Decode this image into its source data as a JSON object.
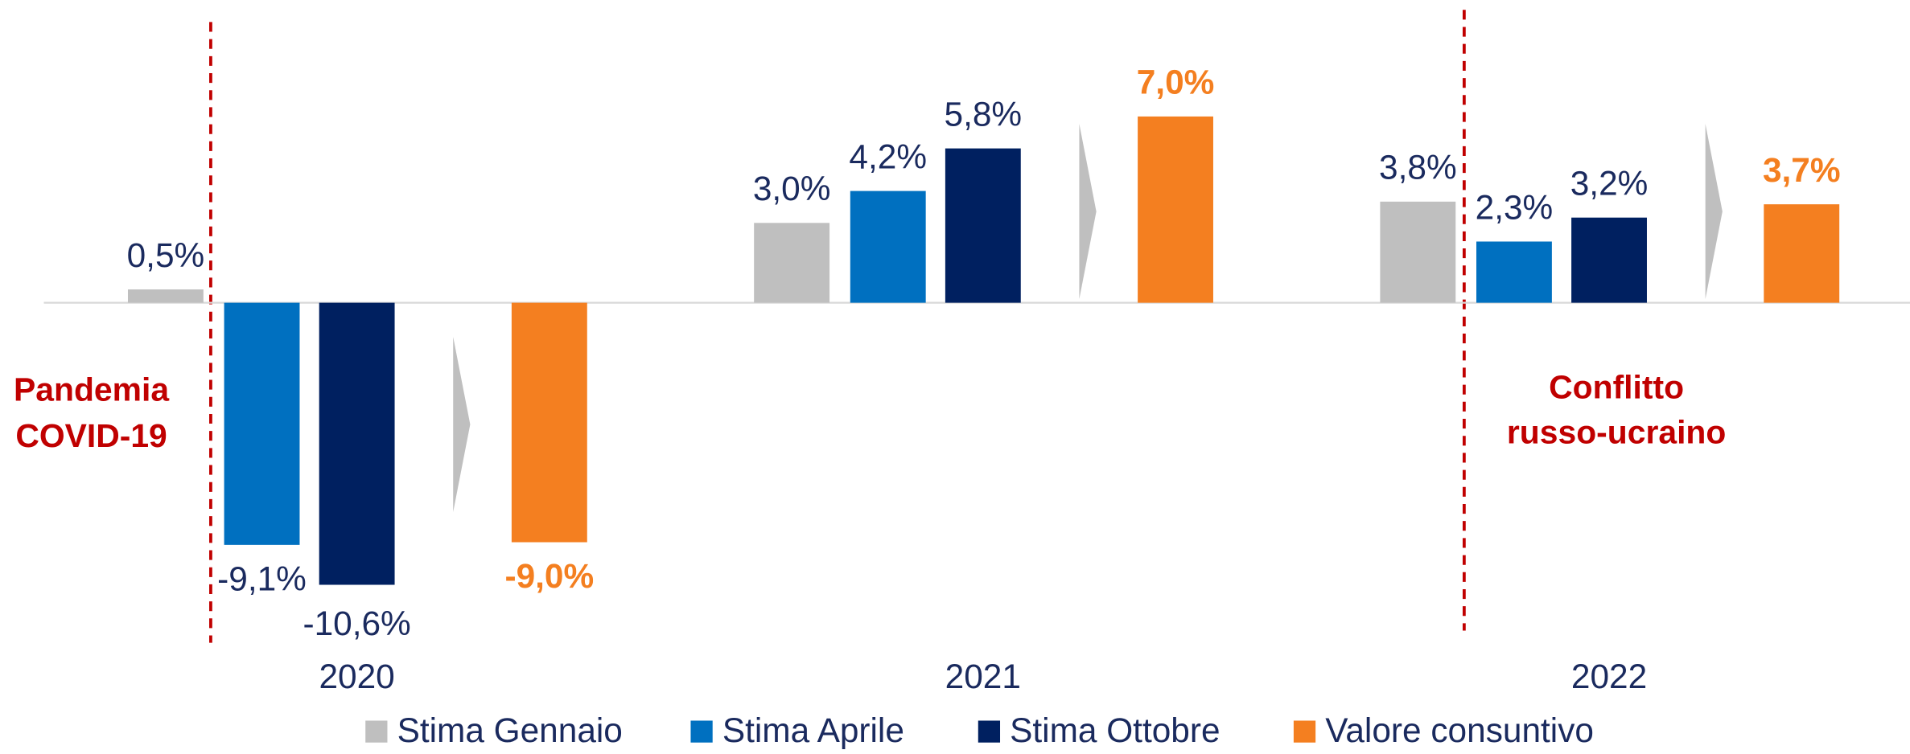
{
  "chart_data": {
    "type": "bar",
    "categories": [
      "2020",
      "2021",
      "2022"
    ],
    "series": [
      {
        "name": "Stima Gennaio",
        "color": "#bfbfbf",
        "values": [
          0.5,
          3.0,
          3.8
        ],
        "value_labels": [
          "0,5%",
          "3,0%",
          "3,8%"
        ]
      },
      {
        "name": "Stima Aprile",
        "color": "#0070c0",
        "values": [
          -9.1,
          4.2,
          2.3
        ],
        "value_labels": [
          "-9,1%",
          "4,2%",
          "2,3%"
        ]
      },
      {
        "name": "Stima Ottobre",
        "color": "#002060",
        "values": [
          -10.6,
          5.8,
          3.2
        ],
        "value_labels": [
          "-10,6%",
          "5,8%",
          "3,2%"
        ]
      },
      {
        "name": "Valore consuntivo",
        "color": "#f47f20",
        "values": [
          -9.0,
          7.0,
          3.7
        ],
        "value_labels": [
          "-9,0%",
          "7,0%",
          "3,7%"
        ]
      }
    ],
    "ylim": [
      -12,
      10
    ],
    "annotations": [
      "Pandemia COVID-19",
      "Conflitto russo-ucraino"
    ]
  }
}
